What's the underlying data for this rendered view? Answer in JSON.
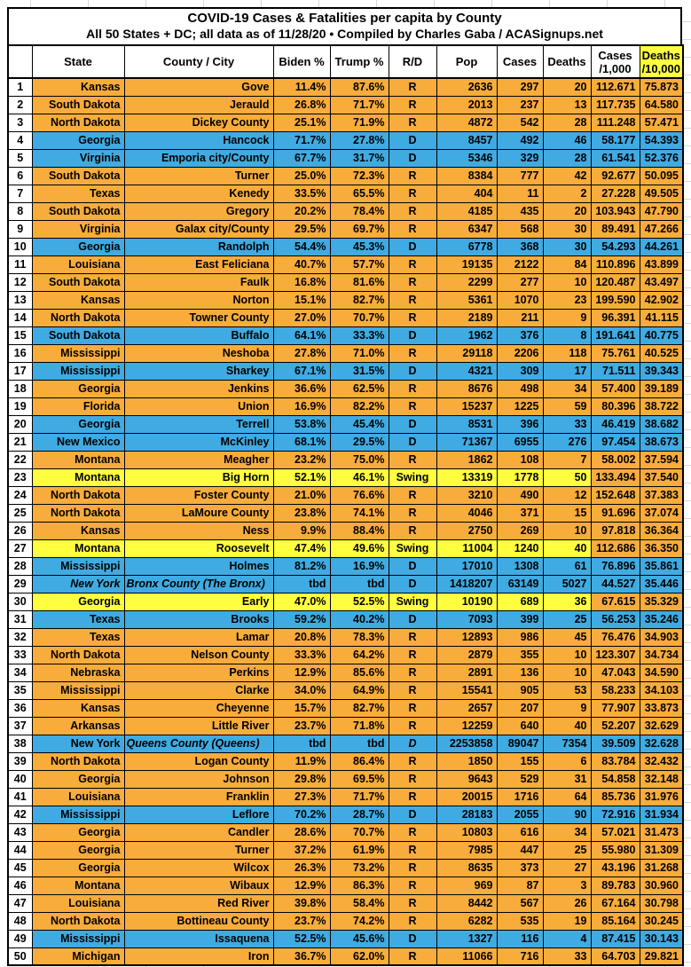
{
  "chart_data": {
    "type": "table",
    "title": "COVID-19 Cases & Fatalities per capita by County",
    "subtitle": "All 50 States + DC; all data as of 11/28/20  • Compiled by Charles Gaba / ACASignups.net",
    "headers": {
      "num": "",
      "state": "State",
      "county": "County / City",
      "biden": "Biden %",
      "trump": "Trump %",
      "rd": "R/D",
      "pop": "Pop",
      "cases": "Cases",
      "deaths": "Deaths",
      "cases_rate_line1": "Cases",
      "cases_rate_line2": "/1,000",
      "deaths_rate_line1": "Deaths",
      "deaths_rate_line2": "/10,000"
    },
    "colors": {
      "republican_row": "#F8AC3B",
      "democrat_row": "#3FABE2",
      "swing_row": "#FFFF3F",
      "deaths_header_highlight": "#FFFF3F",
      "border": "#000000",
      "gridline": "#D8D8D8"
    },
    "rows": [
      {
        "n": "1",
        "state": "Kansas",
        "county": "Gove",
        "biden": "11.4%",
        "trump": "87.6%",
        "rd": "R",
        "pop": "2636",
        "cases": "297",
        "deaths": "20",
        "cases_rate": "112.671",
        "deaths_rate": "75.873",
        "party": "r"
      },
      {
        "n": "2",
        "state": "South Dakota",
        "county": "Jerauld",
        "biden": "26.8%",
        "trump": "71.7%",
        "rd": "R",
        "pop": "2013",
        "cases": "237",
        "deaths": "13",
        "cases_rate": "117.735",
        "deaths_rate": "64.580",
        "party": "r"
      },
      {
        "n": "3",
        "state": "North Dakota",
        "county": "Dickey County",
        "biden": "25.1%",
        "trump": "71.9%",
        "rd": "R",
        "pop": "4872",
        "cases": "542",
        "deaths": "28",
        "cases_rate": "111.248",
        "deaths_rate": "57.471",
        "party": "r"
      },
      {
        "n": "4",
        "state": "Georgia",
        "county": "Hancock",
        "biden": "71.7%",
        "trump": "27.8%",
        "rd": "D",
        "pop": "8457",
        "cases": "492",
        "deaths": "46",
        "cases_rate": "58.177",
        "deaths_rate": "54.393",
        "party": "d"
      },
      {
        "n": "5",
        "state": "Virginia",
        "county": "Emporia city/County",
        "biden": "67.7%",
        "trump": "31.7%",
        "rd": "D",
        "pop": "5346",
        "cases": "329",
        "deaths": "28",
        "cases_rate": "61.541",
        "deaths_rate": "52.376",
        "party": "d"
      },
      {
        "n": "6",
        "state": "South Dakota",
        "county": "Turner",
        "biden": "25.0%",
        "trump": "72.3%",
        "rd": "R",
        "pop": "8384",
        "cases": "777",
        "deaths": "42",
        "cases_rate": "92.677",
        "deaths_rate": "50.095",
        "party": "r"
      },
      {
        "n": "7",
        "state": "Texas",
        "county": "Kenedy",
        "biden": "33.5%",
        "trump": "65.5%",
        "rd": "R",
        "pop": "404",
        "cases": "11",
        "deaths": "2",
        "cases_rate": "27.228",
        "deaths_rate": "49.505",
        "party": "r"
      },
      {
        "n": "8",
        "state": "South Dakota",
        "county": "Gregory",
        "biden": "20.2%",
        "trump": "78.4%",
        "rd": "R",
        "pop": "4185",
        "cases": "435",
        "deaths": "20",
        "cases_rate": "103.943",
        "deaths_rate": "47.790",
        "party": "r"
      },
      {
        "n": "9",
        "state": "Virginia",
        "county": "Galax city/County",
        "biden": "29.5%",
        "trump": "69.7%",
        "rd": "R",
        "pop": "6347",
        "cases": "568",
        "deaths": "30",
        "cases_rate": "89.491",
        "deaths_rate": "47.266",
        "party": "r"
      },
      {
        "n": "10",
        "state": "Georgia",
        "county": "Randolph",
        "biden": "54.4%",
        "trump": "45.3%",
        "rd": "D",
        "pop": "6778",
        "cases": "368",
        "deaths": "30",
        "cases_rate": "54.293",
        "deaths_rate": "44.261",
        "party": "d"
      },
      {
        "n": "11",
        "state": "Louisiana",
        "county": "East Feliciana",
        "biden": "40.7%",
        "trump": "57.7%",
        "rd": "R",
        "pop": "19135",
        "cases": "2122",
        "deaths": "84",
        "cases_rate": "110.896",
        "deaths_rate": "43.899",
        "party": "r"
      },
      {
        "n": "12",
        "state": "South Dakota",
        "county": "Faulk",
        "biden": "16.8%",
        "trump": "81.6%",
        "rd": "R",
        "pop": "2299",
        "cases": "277",
        "deaths": "10",
        "cases_rate": "120.487",
        "deaths_rate": "43.497",
        "party": "r"
      },
      {
        "n": "13",
        "state": "Kansas",
        "county": "Norton",
        "biden": "15.1%",
        "trump": "82.7%",
        "rd": "R",
        "pop": "5361",
        "cases": "1070",
        "deaths": "23",
        "cases_rate": "199.590",
        "deaths_rate": "42.902",
        "party": "r"
      },
      {
        "n": "14",
        "state": "North Dakota",
        "county": "Towner County",
        "biden": "27.0%",
        "trump": "70.7%",
        "rd": "R",
        "pop": "2189",
        "cases": "211",
        "deaths": "9",
        "cases_rate": "96.391",
        "deaths_rate": "41.115",
        "party": "r"
      },
      {
        "n": "15",
        "state": "South Dakota",
        "county": "Buffalo",
        "biden": "64.1%",
        "trump": "33.3%",
        "rd": "D",
        "pop": "1962",
        "cases": "376",
        "deaths": "8",
        "cases_rate": "191.641",
        "deaths_rate": "40.775",
        "party": "d"
      },
      {
        "n": "16",
        "state": "Mississippi",
        "county": "Neshoba",
        "biden": "27.8%",
        "trump": "71.0%",
        "rd": "R",
        "pop": "29118",
        "cases": "2206",
        "deaths": "118",
        "cases_rate": "75.761",
        "deaths_rate": "40.525",
        "party": "r"
      },
      {
        "n": "17",
        "state": "Mississippi",
        "county": "Sharkey",
        "biden": "67.1%",
        "trump": "31.5%",
        "rd": "D",
        "pop": "4321",
        "cases": "309",
        "deaths": "17",
        "cases_rate": "71.511",
        "deaths_rate": "39.343",
        "party": "d"
      },
      {
        "n": "18",
        "state": "Georgia",
        "county": "Jenkins",
        "biden": "36.6%",
        "trump": "62.5%",
        "rd": "R",
        "pop": "8676",
        "cases": "498",
        "deaths": "34",
        "cases_rate": "57.400",
        "deaths_rate": "39.189",
        "party": "r"
      },
      {
        "n": "19",
        "state": "Florida",
        "county": "Union",
        "biden": "16.9%",
        "trump": "82.2%",
        "rd": "R",
        "pop": "15237",
        "cases": "1225",
        "deaths": "59",
        "cases_rate": "80.396",
        "deaths_rate": "38.722",
        "party": "r"
      },
      {
        "n": "20",
        "state": "Georgia",
        "county": "Terrell",
        "biden": "53.8%",
        "trump": "45.4%",
        "rd": "D",
        "pop": "8531",
        "cases": "396",
        "deaths": "33",
        "cases_rate": "46.419",
        "deaths_rate": "38.682",
        "party": "d"
      },
      {
        "n": "21",
        "state": "New Mexico",
        "county": "McKinley",
        "biden": "68.1%",
        "trump": "29.5%",
        "rd": "D",
        "pop": "71367",
        "cases": "6955",
        "deaths": "276",
        "cases_rate": "97.454",
        "deaths_rate": "38.673",
        "party": "d"
      },
      {
        "n": "22",
        "state": "Montana",
        "county": "Meagher",
        "biden": "23.2%",
        "trump": "75.0%",
        "rd": "R",
        "pop": "1862",
        "cases": "108",
        "deaths": "7",
        "cases_rate": "58.002",
        "deaths_rate": "37.594",
        "party": "r"
      },
      {
        "n": "23",
        "state": "Montana",
        "county": "Big Horn",
        "biden": "52.1%",
        "trump": "46.1%",
        "rd": "Swing",
        "pop": "13319",
        "cases": "1778",
        "deaths": "50",
        "cases_rate": "133.494",
        "deaths_rate": "37.540",
        "party": "s"
      },
      {
        "n": "24",
        "state": "North Dakota",
        "county": "Foster County",
        "biden": "21.0%",
        "trump": "76.6%",
        "rd": "R",
        "pop": "3210",
        "cases": "490",
        "deaths": "12",
        "cases_rate": "152.648",
        "deaths_rate": "37.383",
        "party": "r"
      },
      {
        "n": "25",
        "state": "North Dakota",
        "county": "LaMoure County",
        "biden": "23.8%",
        "trump": "74.1%",
        "rd": "R",
        "pop": "4046",
        "cases": "371",
        "deaths": "15",
        "cases_rate": "91.696",
        "deaths_rate": "37.074",
        "party": "r"
      },
      {
        "n": "26",
        "state": "Kansas",
        "county": "Ness",
        "biden": "9.9%",
        "trump": "88.4%",
        "rd": "R",
        "pop": "2750",
        "cases": "269",
        "deaths": "10",
        "cases_rate": "97.818",
        "deaths_rate": "36.364",
        "party": "r"
      },
      {
        "n": "27",
        "state": "Montana",
        "county": "Roosevelt",
        "biden": "47.4%",
        "trump": "49.6%",
        "rd": "Swing",
        "pop": "11004",
        "cases": "1240",
        "deaths": "40",
        "cases_rate": "112.686",
        "deaths_rate": "36.350",
        "party": "s"
      },
      {
        "n": "28",
        "state": "Mississippi",
        "county": "Holmes",
        "biden": "81.2%",
        "trump": "16.9%",
        "rd": "D",
        "pop": "17010",
        "cases": "1308",
        "deaths": "61",
        "cases_rate": "76.896",
        "deaths_rate": "35.861",
        "party": "d"
      },
      {
        "n": "29",
        "state": "New York",
        "county": "Bronx County (The Bronx)",
        "biden": "tbd",
        "trump": "tbd",
        "rd": "D",
        "pop": "1418207",
        "cases": "63149",
        "deaths": "5027",
        "cases_rate": "44.527",
        "deaths_rate": "35.446",
        "party": "d",
        "italics": [
          "state",
          "county"
        ],
        "county_left": true
      },
      {
        "n": "30",
        "state": "Georgia",
        "county": "Early",
        "biden": "47.0%",
        "trump": "52.5%",
        "rd": "Swing",
        "pop": "10190",
        "cases": "689",
        "deaths": "36",
        "cases_rate": "67.615",
        "deaths_rate": "35.329",
        "party": "s"
      },
      {
        "n": "31",
        "state": "Texas",
        "county": "Brooks",
        "biden": "59.2%",
        "trump": "40.2%",
        "rd": "D",
        "pop": "7093",
        "cases": "399",
        "deaths": "25",
        "cases_rate": "56.253",
        "deaths_rate": "35.246",
        "party": "d"
      },
      {
        "n": "32",
        "state": "Texas",
        "county": "Lamar",
        "biden": "20.8%",
        "trump": "78.3%",
        "rd": "R",
        "pop": "12893",
        "cases": "986",
        "deaths": "45",
        "cases_rate": "76.476",
        "deaths_rate": "34.903",
        "party": "r"
      },
      {
        "n": "33",
        "state": "North Dakota",
        "county": "Nelson County",
        "biden": "33.3%",
        "trump": "64.2%",
        "rd": "R",
        "pop": "2879",
        "cases": "355",
        "deaths": "10",
        "cases_rate": "123.307",
        "deaths_rate": "34.734",
        "party": "r"
      },
      {
        "n": "34",
        "state": "Nebraska",
        "county": "Perkins",
        "biden": "12.9%",
        "trump": "85.6%",
        "rd": "R",
        "pop": "2891",
        "cases": "136",
        "deaths": "10",
        "cases_rate": "47.043",
        "deaths_rate": "34.590",
        "party": "r"
      },
      {
        "n": "35",
        "state": "Mississippi",
        "county": "Clarke",
        "biden": "34.0%",
        "trump": "64.9%",
        "rd": "R",
        "pop": "15541",
        "cases": "905",
        "deaths": "53",
        "cases_rate": "58.233",
        "deaths_rate": "34.103",
        "party": "r"
      },
      {
        "n": "36",
        "state": "Kansas",
        "county": "Cheyenne",
        "biden": "15.7%",
        "trump": "82.7%",
        "rd": "R",
        "pop": "2657",
        "cases": "207",
        "deaths": "9",
        "cases_rate": "77.907",
        "deaths_rate": "33.873",
        "party": "r"
      },
      {
        "n": "37",
        "state": "Arkansas",
        "county": "Little River",
        "biden": "23.7%",
        "trump": "71.8%",
        "rd": "R",
        "pop": "12259",
        "cases": "640",
        "deaths": "40",
        "cases_rate": "52.207",
        "deaths_rate": "32.629",
        "party": "r"
      },
      {
        "n": "38",
        "state": "New York",
        "county": "Queens County (Queens)",
        "biden": "tbd",
        "trump": "tbd",
        "rd": "D",
        "pop": "2253858",
        "cases": "89047",
        "deaths": "7354",
        "cases_rate": "39.509",
        "deaths_rate": "32.628",
        "party": "d",
        "italics": [
          "county",
          "rd"
        ],
        "county_left": true
      },
      {
        "n": "39",
        "state": "North Dakota",
        "county": "Logan County",
        "biden": "11.9%",
        "trump": "86.4%",
        "rd": "R",
        "pop": "1850",
        "cases": "155",
        "deaths": "6",
        "cases_rate": "83.784",
        "deaths_rate": "32.432",
        "party": "r"
      },
      {
        "n": "40",
        "state": "Georgia",
        "county": "Johnson",
        "biden": "29.8%",
        "trump": "69.5%",
        "rd": "R",
        "pop": "9643",
        "cases": "529",
        "deaths": "31",
        "cases_rate": "54.858",
        "deaths_rate": "32.148",
        "party": "r"
      },
      {
        "n": "41",
        "state": "Louisiana",
        "county": "Franklin",
        "biden": "27.3%",
        "trump": "71.7%",
        "rd": "R",
        "pop": "20015",
        "cases": "1716",
        "deaths": "64",
        "cases_rate": "85.736",
        "deaths_rate": "31.976",
        "party": "r"
      },
      {
        "n": "42",
        "state": "Mississippi",
        "county": "Leflore",
        "biden": "70.2%",
        "trump": "28.7%",
        "rd": "D",
        "pop": "28183",
        "cases": "2055",
        "deaths": "90",
        "cases_rate": "72.916",
        "deaths_rate": "31.934",
        "party": "d"
      },
      {
        "n": "43",
        "state": "Georgia",
        "county": "Candler",
        "biden": "28.6%",
        "trump": "70.7%",
        "rd": "R",
        "pop": "10803",
        "cases": "616",
        "deaths": "34",
        "cases_rate": "57.021",
        "deaths_rate": "31.473",
        "party": "r"
      },
      {
        "n": "44",
        "state": "Georgia",
        "county": "Turner",
        "biden": "37.2%",
        "trump": "61.9%",
        "rd": "R",
        "pop": "7985",
        "cases": "447",
        "deaths": "25",
        "cases_rate": "55.980",
        "deaths_rate": "31.309",
        "party": "r"
      },
      {
        "n": "45",
        "state": "Georgia",
        "county": "Wilcox",
        "biden": "26.3%",
        "trump": "73.2%",
        "rd": "R",
        "pop": "8635",
        "cases": "373",
        "deaths": "27",
        "cases_rate": "43.196",
        "deaths_rate": "31.268",
        "party": "r"
      },
      {
        "n": "46",
        "state": "Montana",
        "county": "Wibaux",
        "biden": "12.9%",
        "trump": "86.3%",
        "rd": "R",
        "pop": "969",
        "cases": "87",
        "deaths": "3",
        "cases_rate": "89.783",
        "deaths_rate": "30.960",
        "party": "r"
      },
      {
        "n": "47",
        "state": "Louisiana",
        "county": "Red River",
        "biden": "39.8%",
        "trump": "58.4%",
        "rd": "R",
        "pop": "8442",
        "cases": "567",
        "deaths": "26",
        "cases_rate": "67.164",
        "deaths_rate": "30.798",
        "party": "r"
      },
      {
        "n": "48",
        "state": "North Dakota",
        "county": "Bottineau County",
        "biden": "23.7%",
        "trump": "74.2%",
        "rd": "R",
        "pop": "6282",
        "cases": "535",
        "deaths": "19",
        "cases_rate": "85.164",
        "deaths_rate": "30.245",
        "party": "r"
      },
      {
        "n": "49",
        "state": "Mississippi",
        "county": "Issaquena",
        "biden": "52.5%",
        "trump": "45.6%",
        "rd": "D",
        "pop": "1327",
        "cases": "116",
        "deaths": "4",
        "cases_rate": "87.415",
        "deaths_rate": "30.143",
        "party": "d"
      },
      {
        "n": "50",
        "state": "Michigan",
        "county": "Iron",
        "biden": "36.7%",
        "trump": "62.0%",
        "rd": "R",
        "pop": "11066",
        "cases": "716",
        "deaths": "33",
        "cases_rate": "64.703",
        "deaths_rate": "29.821",
        "party": "r"
      }
    ]
  }
}
